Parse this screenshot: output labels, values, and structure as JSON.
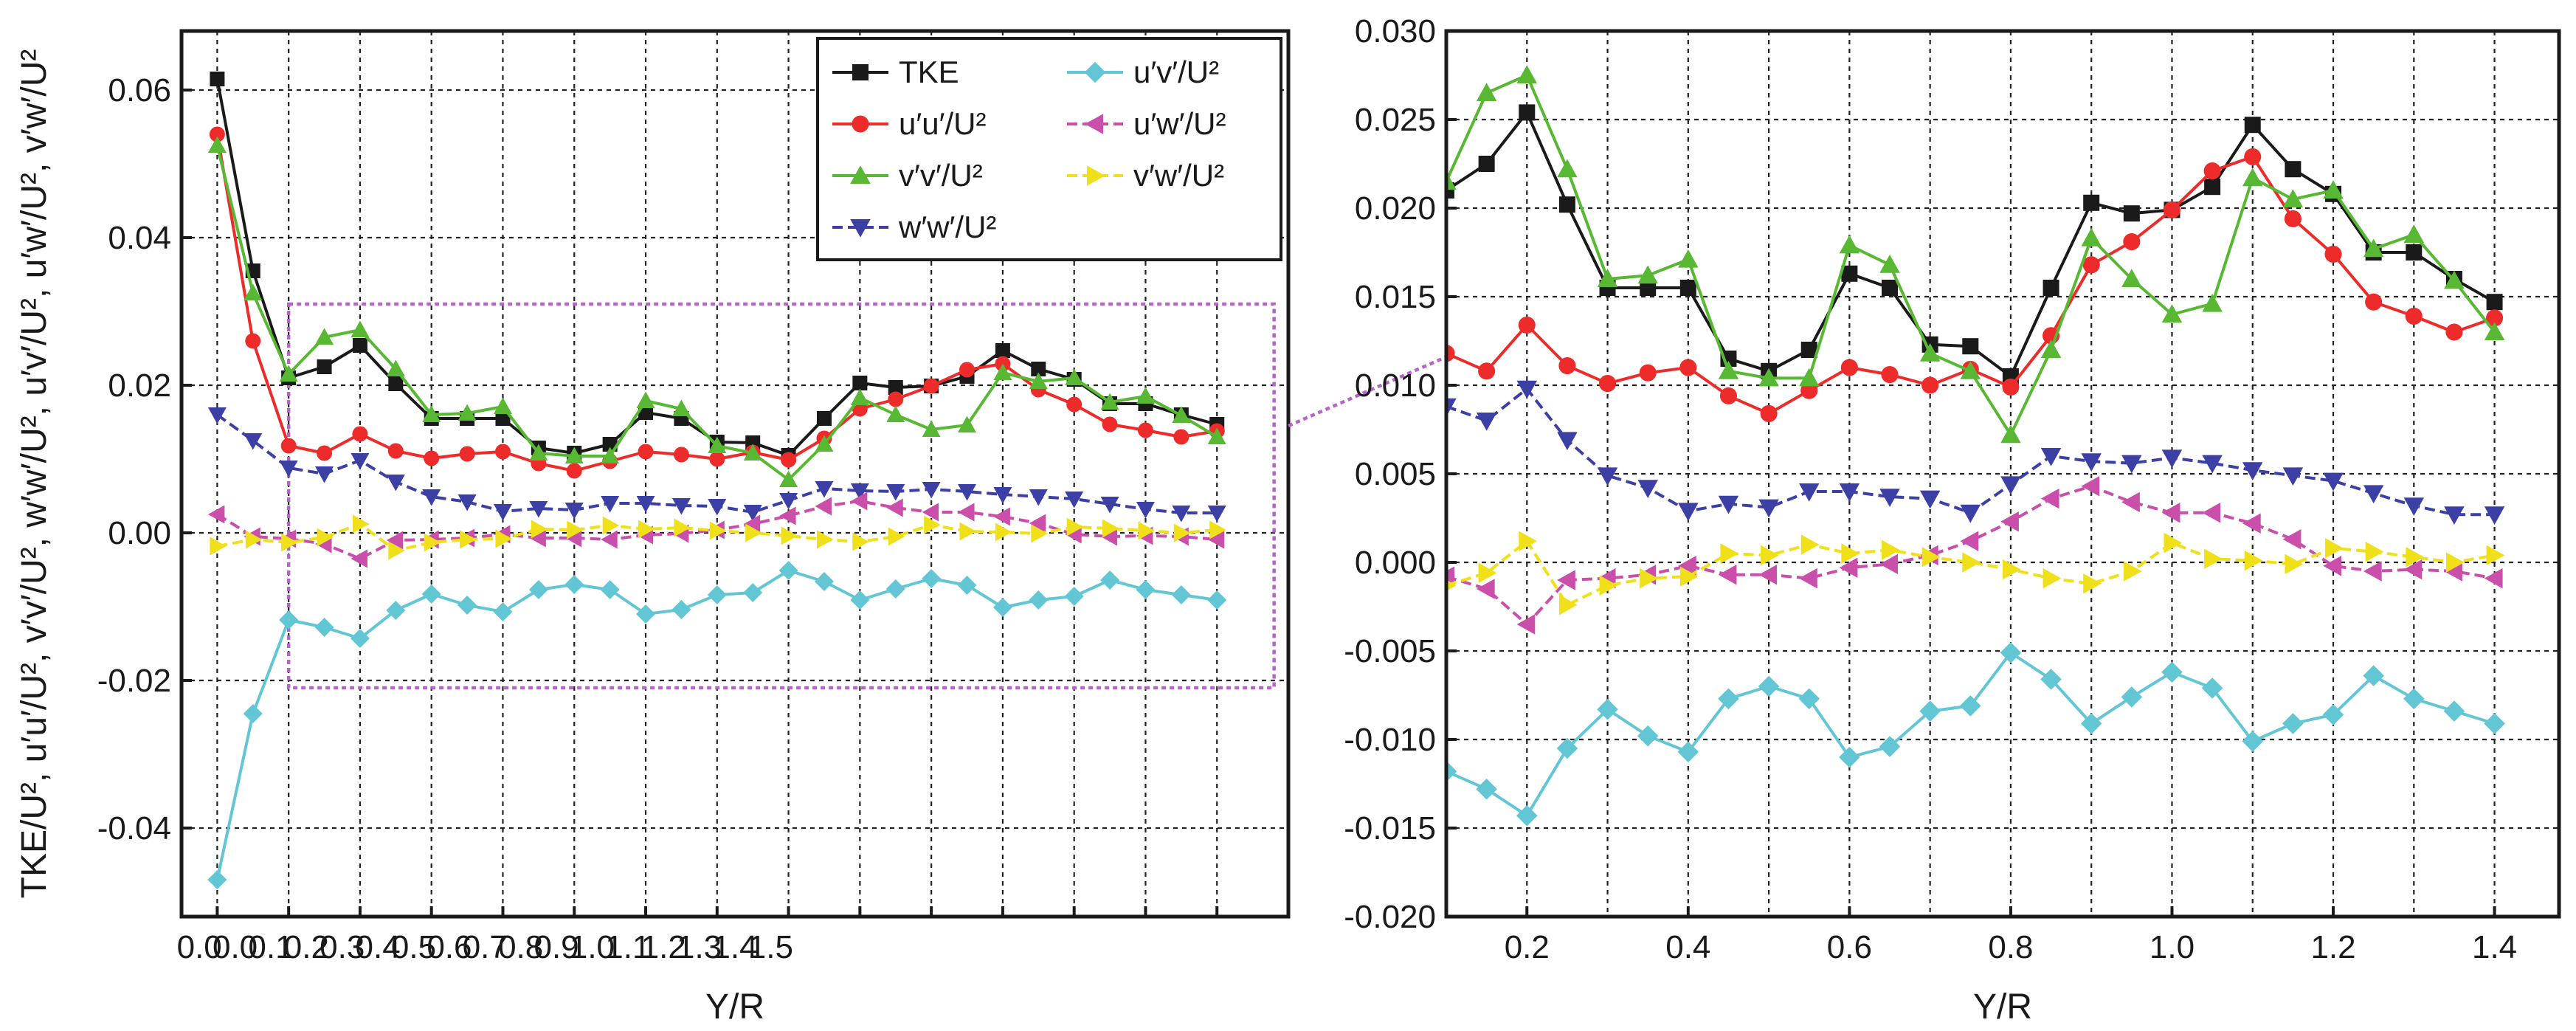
{
  "chart_data": [
    {
      "type": "line",
      "panel": "left",
      "title": "",
      "xlabel": "Y/R",
      "ylabel": "TKE/U², u′u′/U², v′v′/U², w′w′/U², u′v′/U², u′w′/U², v′w′/U²",
      "xlim": [
        -0.05,
        1.5
      ],
      "ylim": [
        -0.052,
        0.068
      ],
      "x_ticks": [
        0.0,
        0.1,
        0.2,
        0.3,
        0.4,
        0.5,
        0.6,
        0.7,
        0.8,
        0.9,
        1.0,
        1.1,
        1.2,
        1.3,
        1.4,
        1.5
      ],
      "x_tick_labels": [
        "0.0",
        "0.0",
        "0.1",
        "0.2",
        "0.3",
        "0.4",
        "0.5",
        "0.6",
        "0.7",
        "0.8",
        "0.9",
        "1.0",
        "1.1",
        "1.2",
        "1.3",
        "1.4",
        "1.5"
      ],
      "x_label_positions": [
        -0.025,
        0.025,
        0.075,
        0.125,
        0.175,
        0.225,
        0.275,
        0.325,
        0.375,
        0.425,
        0.475,
        0.525,
        0.575,
        0.625,
        0.675,
        0.725,
        0.775
      ],
      "y_ticks": [
        -0.04,
        -0.02,
        0.0,
        0.02,
        0.04,
        0.06
      ],
      "y_tick_labels": [
        "-0.04",
        "-0.02",
        "0.00",
        "0.02",
        "0.04",
        "0.06"
      ],
      "grid": true,
      "legend_position": "top-right",
      "zoom_box": {
        "x_range": [
          0.1,
          1.48
        ],
        "y_range": [
          -0.021,
          0.031
        ]
      }
    },
    {
      "type": "line",
      "panel": "right",
      "title": "",
      "xlabel": "Y/R",
      "ylabel": "",
      "xlim": [
        0.1,
        1.48
      ],
      "ylim": [
        -0.02,
        0.03
      ],
      "x_ticks": [
        0.2,
        0.4,
        0.6,
        0.8,
        1.0,
        1.2,
        1.4
      ],
      "x_tick_labels": [
        "0.2",
        "0.4",
        "0.6",
        "0.8",
        "1.0",
        "1.2",
        "1.4"
      ],
      "y_ticks": [
        -0.02,
        -0.015,
        -0.01,
        -0.005,
        0.0,
        0.005,
        0.01,
        0.015,
        0.02,
        0.025,
        0.03
      ],
      "y_tick_labels": [
        "-0.020",
        "-0.015",
        "-0.010",
        "-0.005",
        "0.000",
        "0.005",
        "0.010",
        "0.015",
        "0.020",
        "0.025",
        "0.030"
      ],
      "grid": true
    }
  ],
  "series": [
    {
      "name": "TKE",
      "color": "#1a1a1a",
      "marker": "square",
      "dash": false,
      "x": [
        0.0,
        0.05,
        0.1,
        0.15,
        0.2,
        0.25,
        0.3,
        0.35,
        0.4,
        0.45,
        0.5,
        0.55,
        0.6,
        0.65,
        0.7,
        0.75,
        0.8,
        0.85,
        0.9,
        0.95,
        1.0,
        1.05,
        1.1,
        1.15,
        1.2,
        1.25,
        1.3,
        1.35,
        1.4
      ],
      "y": [
        0.0615,
        0.0355,
        0.021,
        0.0225,
        0.0254,
        0.0202,
        0.0155,
        0.0155,
        0.0155,
        0.0115,
        0.0108,
        0.012,
        0.0163,
        0.0155,
        0.0123,
        0.0122,
        0.0105,
        0.0155,
        0.0203,
        0.0197,
        0.0199,
        0.0212,
        0.0247,
        0.0222,
        0.0208,
        0.0175,
        0.0175,
        0.016,
        0.0147
      ]
    },
    {
      "name": "u′u′/U²",
      "color": "#ee2b2b",
      "marker": "circle",
      "dash": false,
      "x": [
        0.0,
        0.05,
        0.1,
        0.15,
        0.2,
        0.25,
        0.3,
        0.35,
        0.4,
        0.45,
        0.5,
        0.55,
        0.6,
        0.65,
        0.7,
        0.75,
        0.8,
        0.85,
        0.9,
        0.95,
        1.0,
        1.05,
        1.1,
        1.15,
        1.2,
        1.25,
        1.3,
        1.35,
        1.4
      ],
      "y": [
        0.054,
        0.026,
        0.0118,
        0.0108,
        0.0134,
        0.0111,
        0.0101,
        0.0107,
        0.011,
        0.0094,
        0.0084,
        0.0097,
        0.011,
        0.0106,
        0.01,
        0.0109,
        0.0099,
        0.0128,
        0.0168,
        0.0181,
        0.0199,
        0.0221,
        0.0229,
        0.0194,
        0.0174,
        0.0147,
        0.0139,
        0.013,
        0.0138
      ]
    },
    {
      "name": "v′v′/U²",
      "color": "#58b833",
      "marker": "triangle-up",
      "dash": false,
      "x": [
        0.0,
        0.05,
        0.1,
        0.15,
        0.2,
        0.25,
        0.3,
        0.35,
        0.4,
        0.45,
        0.5,
        0.55,
        0.6,
        0.65,
        0.7,
        0.75,
        0.8,
        0.85,
        0.9,
        0.95,
        1.0,
        1.05,
        1.1,
        1.15,
        1.2,
        1.25,
        1.3,
        1.35,
        1.4
      ],
      "y": [
        0.0525,
        0.0325,
        0.0215,
        0.0265,
        0.0275,
        0.0222,
        0.016,
        0.0162,
        0.0171,
        0.0108,
        0.0104,
        0.0104,
        0.0179,
        0.0168,
        0.0118,
        0.0108,
        0.0072,
        0.012,
        0.0183,
        0.016,
        0.014,
        0.0146,
        0.0217,
        0.0205,
        0.021,
        0.0177,
        0.0185,
        0.0159,
        0.013
      ]
    },
    {
      "name": "w′w′/U²",
      "color": "#3c3fa3",
      "marker": "triangle-down",
      "dash": true,
      "x": [
        0.0,
        0.05,
        0.1,
        0.15,
        0.2,
        0.25,
        0.3,
        0.35,
        0.4,
        0.45,
        0.5,
        0.55,
        0.6,
        0.65,
        0.7,
        0.75,
        0.8,
        0.85,
        0.9,
        0.95,
        1.0,
        1.05,
        1.1,
        1.15,
        1.2,
        1.25,
        1.3,
        1.35,
        1.4
      ],
      "y": [
        0.016,
        0.0125,
        0.0088,
        0.008,
        0.0098,
        0.0069,
        0.0049,
        0.0042,
        0.0029,
        0.0033,
        0.0031,
        0.004,
        0.004,
        0.0037,
        0.0036,
        0.0028,
        0.0044,
        0.006,
        0.0057,
        0.0056,
        0.0059,
        0.0056,
        0.0052,
        0.0049,
        0.0046,
        0.0039,
        0.0032,
        0.0027,
        0.0027
      ]
    },
    {
      "name": "u′v′/U²",
      "color": "#62c6d4",
      "marker": "diamond",
      "dash": false,
      "x": [
        0.0,
        0.05,
        0.1,
        0.15,
        0.2,
        0.25,
        0.3,
        0.35,
        0.4,
        0.45,
        0.5,
        0.55,
        0.6,
        0.65,
        0.7,
        0.75,
        0.8,
        0.85,
        0.9,
        0.95,
        1.0,
        1.05,
        1.1,
        1.15,
        1.2,
        1.25,
        1.3,
        1.35,
        1.4
      ],
      "y": [
        -0.047,
        -0.0245,
        -0.0118,
        -0.0128,
        -0.0143,
        -0.0105,
        -0.0083,
        -0.0098,
        -0.0107,
        -0.0077,
        -0.007,
        -0.0077,
        -0.011,
        -0.0104,
        -0.0084,
        -0.0081,
        -0.0051,
        -0.0066,
        -0.0091,
        -0.0076,
        -0.0062,
        -0.0071,
        -0.0101,
        -0.0091,
        -0.0086,
        -0.0064,
        -0.0077,
        -0.0084,
        -0.0091
      ]
    },
    {
      "name": "u′w′/U²",
      "color": "#c94faa",
      "marker": "triangle-left",
      "dash": true,
      "x": [
        0.0,
        0.05,
        0.1,
        0.15,
        0.2,
        0.25,
        0.3,
        0.35,
        0.4,
        0.45,
        0.5,
        0.55,
        0.6,
        0.65,
        0.7,
        0.75,
        0.8,
        0.85,
        0.9,
        0.95,
        1.0,
        1.05,
        1.1,
        1.15,
        1.2,
        1.25,
        1.3,
        1.35,
        1.4
      ],
      "y": [
        0.0025,
        -0.0005,
        -0.0008,
        -0.0015,
        -0.0035,
        -0.001,
        -0.0009,
        -0.0007,
        -0.0002,
        -0.0007,
        -0.0007,
        -0.0009,
        -0.0003,
        -0.0001,
        0.0004,
        0.0012,
        0.0023,
        0.0036,
        0.0043,
        0.0034,
        0.0028,
        0.0028,
        0.0022,
        0.0013,
        -0.0002,
        -0.0005,
        -0.0004,
        -0.0005,
        -0.0009
      ]
    },
    {
      "name": "v′w′/U²",
      "color": "#f0e01a",
      "marker": "triangle-right",
      "dash": true,
      "x": [
        0.0,
        0.05,
        0.1,
        0.15,
        0.2,
        0.25,
        0.3,
        0.35,
        0.4,
        0.45,
        0.5,
        0.55,
        0.6,
        0.65,
        0.7,
        0.75,
        0.8,
        0.85,
        0.9,
        0.95,
        1.0,
        1.05,
        1.1,
        1.15,
        1.2,
        1.25,
        1.3,
        1.35,
        1.4
      ],
      "y": [
        -0.0018,
        -0.0009,
        -0.0013,
        -0.0006,
        0.0012,
        -0.0024,
        -0.0013,
        -0.0009,
        -0.0008,
        0.0005,
        0.0004,
        0.001,
        0.0005,
        0.0007,
        0.0003,
        0.0,
        -0.0004,
        -0.0009,
        -0.0012,
        -0.0005,
        0.0011,
        0.0002,
        0.0001,
        -0.0001,
        0.0008,
        0.0006,
        0.0003,
        0.0,
        0.0004
      ]
    }
  ],
  "legend_labels": {
    "tke": "TKE",
    "uu": "u′u′/U²",
    "vv": "v′v′/U²",
    "ww": "w′w′/U²",
    "uv": "u′v′/U²",
    "uw": "u′w′/U²",
    "vw": "v′w′/U²"
  }
}
